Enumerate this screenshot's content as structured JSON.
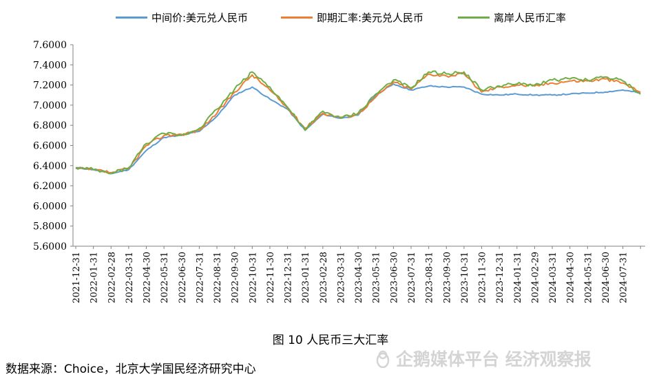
{
  "chart_data": {
    "type": "line",
    "title": "",
    "xlabel": "",
    "ylabel": "",
    "ylim": [
      5.6,
      7.6
    ],
    "yticks": [
      "5.6000",
      "5.8000",
      "6.0000",
      "6.2000",
      "6.4000",
      "6.6000",
      "6.8000",
      "7.0000",
      "7.2000",
      "7.4000",
      "7.6000"
    ],
    "x_ticks": [
      "2021-12-31",
      "2022-01-31",
      "2022-02-28",
      "2022-03-31",
      "2022-04-30",
      "2022-05-31",
      "2022-06-30",
      "2022-07-31",
      "2022-08-31",
      "2022-09-30",
      "2022-10-31",
      "2022-11-30",
      "2022-12-31",
      "2023-01-31",
      "2023-02-28",
      "2023-03-31",
      "2023-04-30",
      "2023-05-31",
      "2023-06-30",
      "2023-07-31",
      "2023-08-31",
      "2023-09-30",
      "2023-10-31",
      "2023-11-30",
      "2023-12-31",
      "2024-01-31",
      "2024-02-29",
      "2024-03-31",
      "2024-04-30",
      "2024-05-31",
      "2024-06-30",
      "2024-07-31"
    ],
    "x": [
      "2021-12-31",
      "2022-01-31",
      "2022-02-28",
      "2022-03-31",
      "2022-04-30",
      "2022-05-31",
      "2022-06-30",
      "2022-07-31",
      "2022-08-31",
      "2022-09-30",
      "2022-10-31",
      "2022-11-30",
      "2022-12-31",
      "2023-01-31",
      "2023-02-28",
      "2023-03-31",
      "2023-04-30",
      "2023-05-31",
      "2023-06-30",
      "2023-07-31",
      "2023-08-31",
      "2023-09-30",
      "2023-10-31",
      "2023-11-30",
      "2023-12-31",
      "2024-01-31",
      "2024-02-29",
      "2024-03-31",
      "2024-04-30",
      "2024-05-31",
      "2024-06-30",
      "2024-07-31",
      "2024-08-31"
    ],
    "series": [
      {
        "name": "中间价:美元兑人民币",
        "color": "#5b9bd5",
        "values": [
          6.38,
          6.36,
          6.32,
          6.36,
          6.55,
          6.68,
          6.7,
          6.74,
          6.89,
          7.1,
          7.18,
          7.06,
          6.96,
          6.75,
          6.91,
          6.87,
          6.9,
          7.1,
          7.21,
          7.15,
          7.19,
          7.18,
          7.18,
          7.11,
          7.1,
          7.11,
          7.1,
          7.1,
          7.11,
          7.12,
          7.13,
          7.15,
          7.12
        ]
      },
      {
        "name": "即期汇率:美元兑人民币",
        "color": "#ed7d31",
        "values": [
          6.37,
          6.36,
          6.33,
          6.37,
          6.6,
          6.7,
          6.71,
          6.75,
          6.92,
          7.13,
          7.3,
          7.15,
          6.97,
          6.77,
          6.92,
          6.88,
          6.91,
          7.08,
          7.23,
          7.16,
          7.31,
          7.29,
          7.31,
          7.13,
          7.18,
          7.2,
          7.19,
          7.22,
          7.24,
          7.24,
          7.26,
          7.22,
          7.13
        ]
      },
      {
        "name": "离岸人民币汇率",
        "color": "#70ad47",
        "values": [
          6.38,
          6.36,
          6.32,
          6.38,
          6.62,
          6.72,
          6.7,
          6.77,
          6.96,
          7.16,
          7.33,
          7.18,
          6.98,
          6.75,
          6.94,
          6.87,
          6.92,
          7.11,
          7.25,
          7.17,
          7.33,
          7.31,
          7.33,
          7.15,
          7.19,
          7.21,
          7.2,
          7.25,
          7.26,
          7.25,
          7.28,
          7.24,
          7.11
        ]
      }
    ]
  },
  "caption": "图 10  人民币三大汇率",
  "source": "数据来源：Choice，北京大学国民经济研究中心",
  "watermark": "企鹅媒体平台 经济观察报"
}
